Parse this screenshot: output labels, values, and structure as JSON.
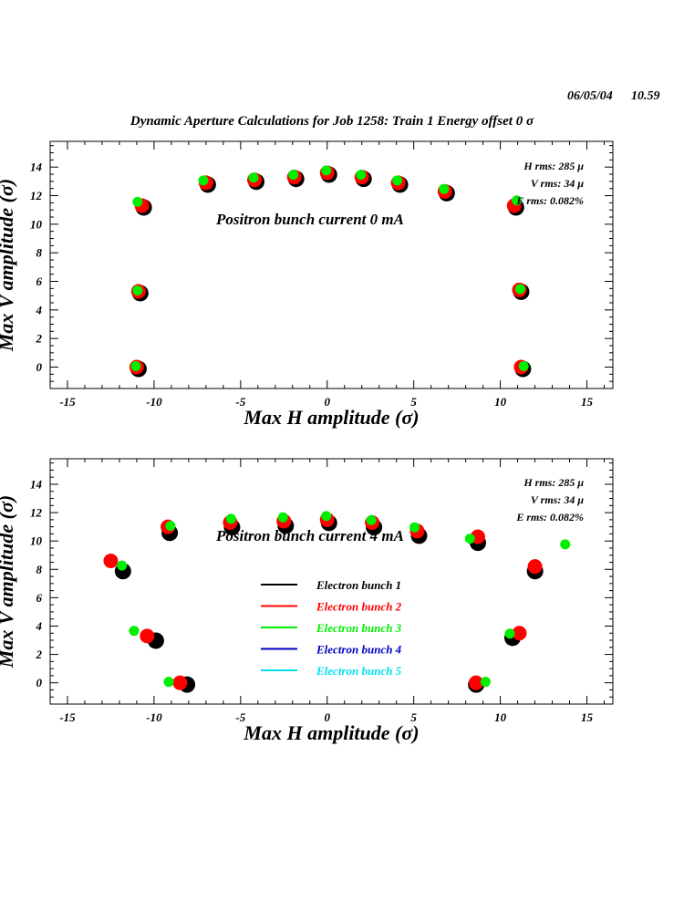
{
  "header": {
    "date": "06/05/04",
    "time": "10.59",
    "title": "Dynamic Aperture Calculations for Job 1258:  Train 1   Energy offset  0 σ"
  },
  "colors": {
    "bunch1": "#000000",
    "bunch2": "#ff0000",
    "bunch3": "#00ee00",
    "bunch4": "#0000c0",
    "bunch5": "#00e0f0"
  },
  "chart_data": [
    {
      "type": "scatter",
      "xlabel": "Max H amplitude (σ)",
      "ylabel": "Max V amplitude (σ)",
      "xlim": [
        -16,
        16.5
      ],
      "ylim": [
        -1.5,
        15.8
      ],
      "xticks": [
        -15,
        -10,
        -5,
        0,
        5,
        10,
        15
      ],
      "yticks": [
        0,
        2,
        4,
        6,
        8,
        10,
        12,
        14
      ],
      "annotation": "Positron bunch current  0 mA",
      "stats": [
        "H rms: 285 μ",
        "V rms: 34 μ",
        "E rms: 0.082%"
      ],
      "series": [
        {
          "color_key": "bunch1",
          "points": [
            [
              -11,
              0
            ],
            [
              -10.9,
              5.3
            ],
            [
              -10.7,
              11.3
            ],
            [
              -7,
              12.9
            ],
            [
              -4.2,
              13.1
            ],
            [
              -1.9,
              13.3
            ],
            [
              0,
              13.6
            ],
            [
              2,
              13.3
            ],
            [
              4.1,
              12.9
            ],
            [
              6.8,
              12.3
            ],
            [
              10.8,
              11.3
            ],
            [
              11.1,
              5.4
            ],
            [
              11.2,
              0
            ]
          ]
        },
        {
          "color_key": "bunch2",
          "points": [
            [
              -11,
              0
            ],
            [
              -10.9,
              5.3
            ],
            [
              -10.7,
              11.3
            ],
            [
              -7,
              12.9
            ],
            [
              -4.2,
              13.1
            ],
            [
              -1.9,
              13.3
            ],
            [
              0,
              13.6
            ],
            [
              2,
              13.3
            ],
            [
              4.1,
              12.9
            ],
            [
              6.8,
              12.3
            ],
            [
              10.8,
              11.3
            ],
            [
              11.1,
              5.4
            ],
            [
              11.2,
              0
            ]
          ]
        },
        {
          "color_key": "bunch3",
          "points": [
            [
              -11,
              0
            ],
            [
              -10.9,
              5.3
            ],
            [
              -10.9,
              11.5
            ],
            [
              -7.1,
              13
            ],
            [
              -4.2,
              13.2
            ],
            [
              -1.9,
              13.4
            ],
            [
              0,
              13.7
            ],
            [
              2,
              13.4
            ],
            [
              4.1,
              13
            ],
            [
              6.8,
              12.4
            ],
            [
              11,
              11.6
            ],
            [
              11.2,
              5.4
            ],
            [
              11.4,
              0
            ]
          ]
        }
      ]
    },
    {
      "type": "scatter",
      "xlabel": "Max H amplitude (σ)",
      "ylabel": "Max V amplitude (σ)",
      "xlim": [
        -16,
        16.5
      ],
      "ylim": [
        -1.5,
        15.8
      ],
      "xticks": [
        -15,
        -10,
        -5,
        0,
        5,
        10,
        15
      ],
      "yticks": [
        0,
        2,
        4,
        6,
        8,
        10,
        12,
        14
      ],
      "annotation": "Positron bunch current  4 mA",
      "stats": [
        "H rms: 285 μ",
        "V rms: 34 μ",
        "E rms: 0.082%"
      ],
      "legend": [
        "Electron bunch 1",
        "Electron bunch 2",
        "Electron bunch 3",
        "Electron bunch 4",
        "Electron bunch 5"
      ],
      "series": [
        {
          "name": "Electron bunch 1",
          "color_key": "bunch1",
          "points": [
            [
              -8.2,
              0
            ],
            [
              -10,
              3.1
            ],
            [
              -11.9,
              8
            ],
            [
              -9.2,
              10.7
            ],
            [
              -5.6,
              11.1
            ],
            [
              -2.5,
              11.2
            ],
            [
              0,
              11.4
            ],
            [
              2.6,
              11.1
            ],
            [
              5.2,
              10.5
            ],
            [
              8.5,
              0
            ],
            [
              10.6,
              3.3
            ],
            [
              8.6,
              10
            ],
            [
              11.9,
              8
            ]
          ]
        },
        {
          "name": "Electron bunch 2",
          "color_key": "bunch2",
          "points": [
            [
              -8.5,
              0
            ],
            [
              -10.4,
              3.3
            ],
            [
              -12.5,
              8.6
            ],
            [
              -9.2,
              11
            ],
            [
              -5.6,
              11.3
            ],
            [
              -2.5,
              11.4
            ],
            [
              0,
              11.5
            ],
            [
              2.6,
              11.3
            ],
            [
              5.2,
              10.7
            ],
            [
              8.6,
              0
            ],
            [
              11.1,
              3.5
            ],
            [
              8.7,
              10.3
            ],
            [
              12,
              8.2
            ]
          ]
        },
        {
          "name": "Electron bunch 3",
          "color_key": "bunch3",
          "points": [
            [
              -9.1,
              0
            ],
            [
              -11.1,
              3.6
            ],
            [
              -11.8,
              8.2
            ],
            [
              -9,
              11
            ],
            [
              -5.5,
              11.5
            ],
            [
              -2.5,
              11.6
            ],
            [
              0,
              11.7
            ],
            [
              2.6,
              11.4
            ],
            [
              5.1,
              10.9
            ],
            [
              9.2,
              0
            ],
            [
              10.6,
              3.4
            ],
            [
              8.3,
              10.1
            ],
            [
              13.8,
              9.7
            ]
          ]
        }
      ]
    }
  ]
}
